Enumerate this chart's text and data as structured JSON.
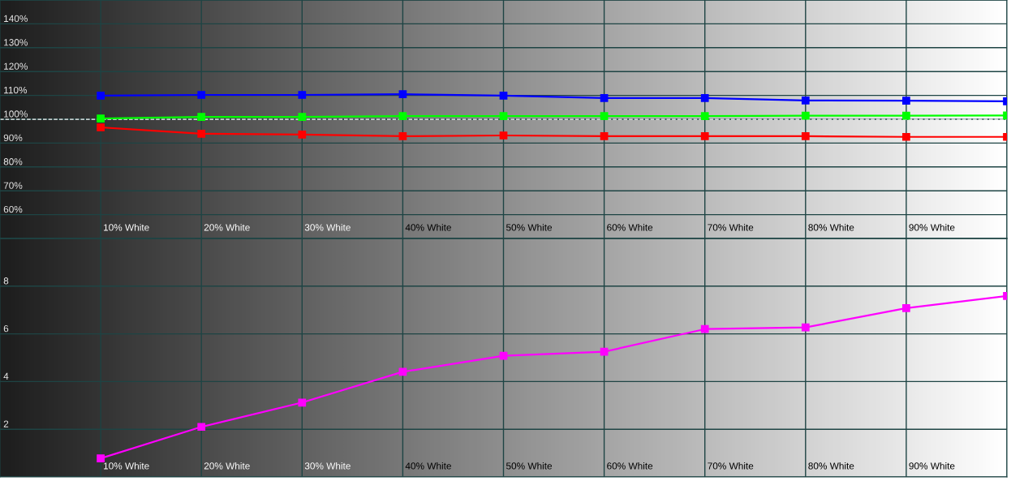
{
  "chart_data": [
    {
      "type": "line",
      "categories": [
        "10% White",
        "20% White",
        "30% White",
        "40% White",
        "50% White",
        "60% White",
        "70% White",
        "80% White",
        "90% White",
        null
      ],
      "series": [
        {
          "color": "#0000ff",
          "values": [
            109.9,
            110.2,
            110.2,
            110.5,
            109.9,
            108.9,
            108.9,
            107.9,
            107.8,
            107.5
          ]
        },
        {
          "color": "#00ff00",
          "values": [
            100.3,
            101.0,
            101.0,
            101.3,
            101.3,
            101.3,
            101.3,
            101.5,
            101.5,
            101.6
          ]
        },
        {
          "color": "#ff0000",
          "values": [
            96.6,
            93.9,
            93.6,
            92.9,
            93.2,
            92.9,
            92.9,
            92.9,
            92.6,
            92.6
          ]
        }
      ],
      "ylim": [
        50,
        150
      ],
      "yticks": [
        {
          "value": 50,
          "label": null
        },
        {
          "value": 60,
          "label": "60%"
        },
        {
          "value": 70,
          "label": "70%"
        },
        {
          "value": 80,
          "label": "80%"
        },
        {
          "value": 90,
          "label": "90%"
        },
        {
          "value": 100,
          "label": "100%"
        },
        {
          "value": 110,
          "label": "110%"
        },
        {
          "value": 120,
          "label": "120%"
        },
        {
          "value": 130,
          "label": "130%"
        },
        {
          "value": 140,
          "label": "140%"
        },
        {
          "value": 150,
          "label": null
        }
      ],
      "ref_lines": [
        {
          "axis": "y",
          "value": 100,
          "label": null,
          "color": "#ffffff",
          "line_style": "dashed"
        }
      ],
      "grid": true,
      "marker": "square",
      "line_style": "solid"
    },
    {
      "type": "line",
      "categories": [
        "10% White",
        "20% White",
        "30% White",
        "40% White",
        "50% White",
        "60% White",
        "70% White",
        "80% White",
        "90% White",
        null
      ],
      "series": [
        {
          "color": "#ff00ff",
          "values": [
            0.78,
            2.1,
            3.12,
            4.41,
            5.08,
            5.25,
            6.2,
            6.27,
            7.08,
            7.59
          ]
        }
      ],
      "ylim": [
        0,
        10
      ],
      "yticks": [
        {
          "value": 0,
          "label": null
        },
        2,
        4,
        6,
        8,
        {
          "value": 10,
          "label": null
        }
      ],
      "grid": true,
      "marker": "square",
      "line_style": "solid"
    }
  ]
}
